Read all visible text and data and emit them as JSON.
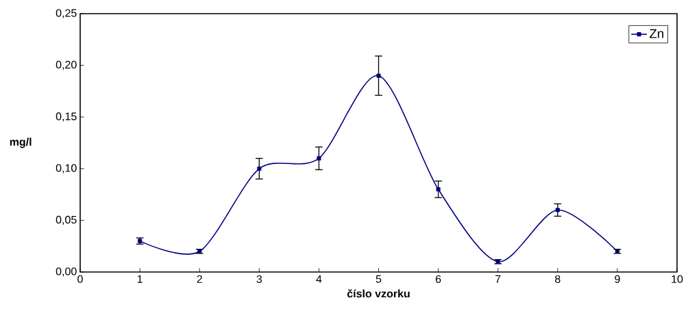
{
  "chart_data": {
    "type": "line",
    "xlabel": "číslo vzorku",
    "ylabel": "mg/l",
    "x": [
      1,
      2,
      3,
      4,
      5,
      6,
      7,
      8,
      9
    ],
    "series": [
      {
        "name": "Zn",
        "color": "#000080",
        "values": [
          0.03,
          0.02,
          0.1,
          0.11,
          0.19,
          0.08,
          0.01,
          0.06,
          0.02
        ],
        "errors": [
          0.003,
          0.002,
          0.01,
          0.011,
          0.019,
          0.008,
          0.002,
          0.006,
          0.002
        ]
      }
    ],
    "xlim": [
      0,
      10
    ],
    "xticks": [
      0,
      1,
      2,
      3,
      4,
      5,
      6,
      7,
      8,
      9,
      10
    ],
    "ylim": [
      0,
      0.25
    ],
    "yticks": [
      {
        "value": 0,
        "label": "0,00"
      },
      {
        "value": 0.05,
        "label": "0,05"
      },
      {
        "value": 0.1,
        "label": "0,10"
      },
      {
        "value": 0.15,
        "label": "0,15"
      },
      {
        "value": 0.2,
        "label": "0,20"
      },
      {
        "value": 0.25,
        "label": "0,25"
      }
    ],
    "grid": false,
    "legend": "top right",
    "marker": "square",
    "line_style": "solid"
  }
}
